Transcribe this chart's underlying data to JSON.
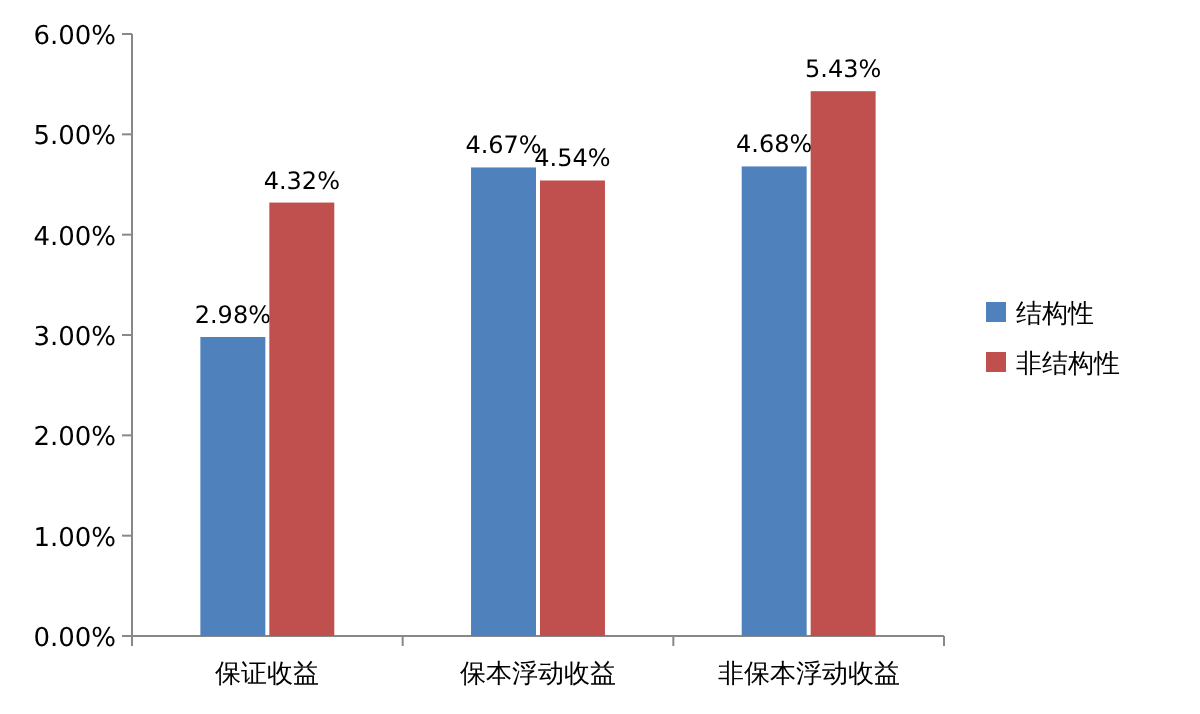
{
  "chart_data": {
    "type": "bar",
    "categories": [
      "保证收益",
      "保本浮动收益",
      "非保本浮动收益"
    ],
    "series": [
      {
        "name": "结构性",
        "color": "#4f81bd",
        "values": [
          2.98,
          4.67,
          4.68
        ],
        "value_labels": [
          "2.98%",
          "4.67%",
          "4.68%"
        ]
      },
      {
        "name": "非结构性",
        "color": "#c0504d",
        "values": [
          4.32,
          4.54,
          5.43
        ],
        "value_labels": [
          "4.32%",
          "4.54%",
          "5.43%"
        ]
      }
    ],
    "ylim": [
      0,
      6
    ],
    "yticks": [
      {
        "value": 0,
        "label": "0.00%"
      },
      {
        "value": 1,
        "label": "1.00%"
      },
      {
        "value": 2,
        "label": "2.00%"
      },
      {
        "value": 3,
        "label": "3.00%"
      },
      {
        "value": 4,
        "label": "4.00%"
      },
      {
        "value": 5,
        "label": "5.00%"
      },
      {
        "value": 6,
        "label": "6.00%"
      }
    ],
    "legend": "right"
  }
}
